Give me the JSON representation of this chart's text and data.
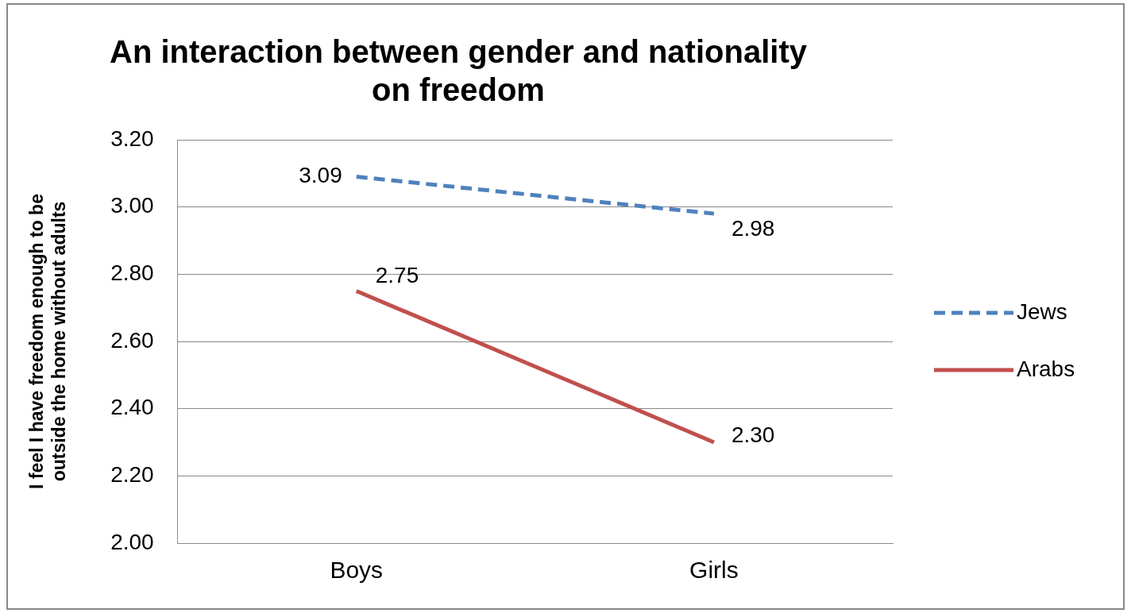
{
  "chart_data": {
    "type": "line",
    "title": "An interaction between gender and nationality on freedom",
    "ylabel": "I feel I have freedom enough to be outside the home without adults",
    "categories": [
      "Boys",
      "Girls"
    ],
    "series": [
      {
        "name": "Jews",
        "color": "#4f81bd",
        "values": [
          3.09,
          2.98
        ],
        "value_labels": [
          "3.09",
          "2.98"
        ],
        "line_style": "dashed"
      },
      {
        "name": "Arabs",
        "color": "#c0504d",
        "values": [
          2.75,
          2.3
        ],
        "value_labels": [
          "2.75",
          "2.30"
        ],
        "line_style": "solid"
      }
    ],
    "ylim": [
      2.0,
      3.2
    ],
    "yticks": [
      {
        "value": 2.0,
        "label": "2.00"
      },
      {
        "value": 2.2,
        "label": "2.20"
      },
      {
        "value": 2.4,
        "label": "2.40"
      },
      {
        "value": 2.6,
        "label": "2.60"
      },
      {
        "value": 2.8,
        "label": "2.80"
      },
      {
        "value": 3.0,
        "label": "3.00"
      },
      {
        "value": 3.2,
        "label": "3.20"
      }
    ],
    "grid": "y",
    "legend": "right",
    "marker": "none"
  }
}
